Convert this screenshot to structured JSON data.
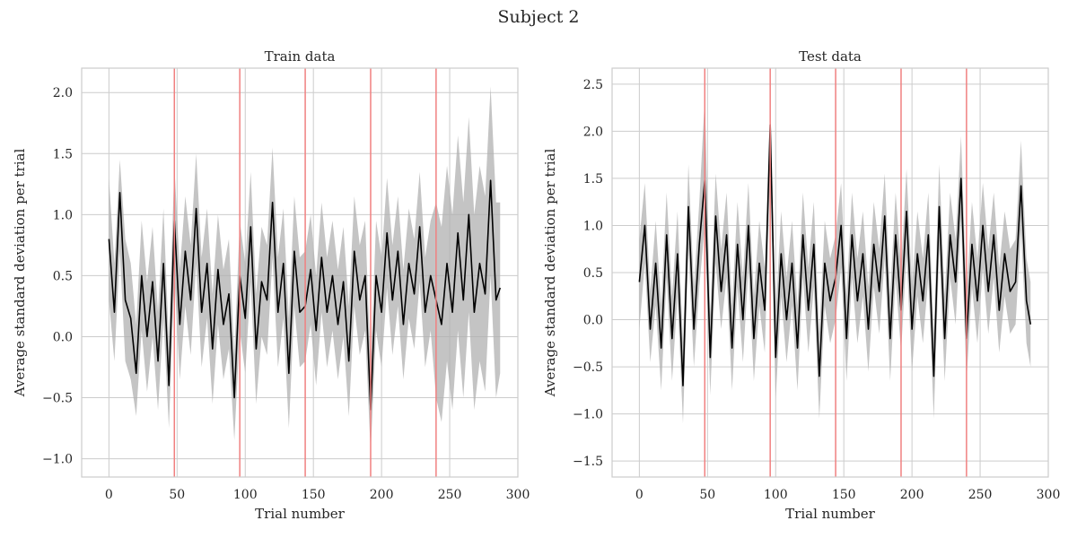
{
  "figure": {
    "suptitle": "Subject 2"
  },
  "chart_data": [
    {
      "type": "line",
      "title": "Train data",
      "xlabel": "Trial number",
      "ylabel": "Average standard deviation per trial",
      "xlim": [
        -20,
        300
      ],
      "ylim": [
        -1.15,
        2.2
      ],
      "xticks": [
        0,
        50,
        100,
        150,
        200,
        250,
        300
      ],
      "yticks": [
        -1.0,
        -0.5,
        0.0,
        0.5,
        1.0,
        1.5,
        2.0
      ],
      "ytick_labels": [
        "−1.0",
        "−0.5",
        "0.0",
        "0.5",
        "1.0",
        "1.5",
        "2.0"
      ],
      "grid": true,
      "vlines": [
        48,
        96,
        144,
        192,
        240
      ],
      "vline_color": "#f08080",
      "line_color": "#000000",
      "band_color": "#b0b0b0",
      "series": [
        {
          "x": [
            0,
            4,
            8,
            12,
            16,
            20,
            24,
            28,
            32,
            36,
            40,
            44,
            48,
            52,
            56,
            60,
            64,
            68,
            72,
            76,
            80,
            84,
            88,
            92,
            96,
            100,
            104,
            108,
            112,
            116,
            120,
            124,
            128,
            132,
            136,
            140,
            144,
            148,
            152,
            156,
            160,
            164,
            168,
            172,
            176,
            180,
            184,
            188,
            192,
            196,
            200,
            204,
            208,
            212,
            216,
            220,
            224,
            228,
            232,
            236,
            240,
            244,
            248,
            252,
            256,
            260,
            264,
            268,
            272,
            276,
            280,
            284,
            287
          ],
          "y": [
            0.8,
            0.2,
            1.18,
            0.3,
            0.15,
            -0.3,
            0.5,
            0.0,
            0.45,
            -0.2,
            0.6,
            -0.4,
            0.95,
            0.1,
            0.7,
            0.3,
            1.05,
            0.2,
            0.6,
            -0.1,
            0.55,
            0.1,
            0.35,
            -0.5,
            0.5,
            0.15,
            0.9,
            -0.1,
            0.45,
            0.3,
            1.1,
            0.2,
            0.6,
            -0.3,
            0.7,
            0.2,
            0.25,
            0.55,
            0.05,
            0.65,
            0.2,
            0.5,
            0.1,
            0.45,
            -0.2,
            0.7,
            0.3,
            0.5,
            -0.6,
            0.5,
            0.2,
            0.85,
            0.3,
            0.7,
            0.1,
            0.6,
            0.35,
            0.9,
            0.2,
            0.5,
            0.3,
            0.1,
            0.6,
            0.2,
            0.85,
            0.3,
            1.0,
            0.2,
            0.6,
            0.35,
            1.28,
            0.3,
            0.4
          ],
          "lower": [
            0.3,
            -0.2,
            0.7,
            -0.2,
            -0.35,
            -0.65,
            0.05,
            -0.45,
            0.0,
            -0.6,
            0.15,
            -0.75,
            0.5,
            -0.35,
            0.25,
            -0.15,
            0.6,
            -0.25,
            0.15,
            -0.55,
            0.1,
            -0.35,
            -0.1,
            -0.85,
            0.05,
            -0.3,
            0.45,
            -0.55,
            0.0,
            -0.15,
            0.65,
            -0.25,
            0.15,
            -0.75,
            0.25,
            -0.25,
            -0.2,
            0.1,
            -0.4,
            0.2,
            -0.25,
            0.05,
            -0.35,
            0.0,
            -0.65,
            0.25,
            -0.15,
            0.05,
            -0.95,
            0.05,
            -0.25,
            0.4,
            -0.15,
            0.25,
            -0.35,
            0.15,
            -0.1,
            0.45,
            -0.25,
            0.05,
            -0.5,
            -0.7,
            -0.2,
            -0.6,
            0.05,
            -0.5,
            0.2,
            -0.6,
            -0.2,
            -0.45,
            0.5,
            -0.5,
            -0.3
          ],
          "upper": [
            1.3,
            0.6,
            1.45,
            0.8,
            0.6,
            0.1,
            0.95,
            0.45,
            0.9,
            0.2,
            1.05,
            -0.05,
            1.4,
            0.55,
            1.15,
            0.75,
            1.5,
            0.65,
            1.05,
            0.35,
            1.0,
            0.55,
            0.8,
            -0.15,
            0.95,
            0.6,
            1.35,
            0.35,
            0.9,
            0.75,
            1.55,
            0.65,
            1.05,
            0.15,
            1.15,
            0.65,
            0.7,
            1.0,
            0.5,
            1.1,
            0.65,
            0.95,
            0.55,
            0.9,
            0.25,
            1.15,
            0.75,
            0.95,
            -0.25,
            0.95,
            0.65,
            1.3,
            0.75,
            1.15,
            0.55,
            1.05,
            0.8,
            1.35,
            0.65,
            0.95,
            1.1,
            0.9,
            1.4,
            1.0,
            1.65,
            1.1,
            1.8,
            1.0,
            1.4,
            1.15,
            2.05,
            1.1,
            1.1
          ]
        }
      ]
    },
    {
      "type": "line",
      "title": "Test data",
      "xlabel": "Trial number",
      "ylabel": "Average standard deviation per trial",
      "xlim": [
        -20,
        300
      ],
      "ylim": [
        -1.67,
        2.67
      ],
      "xticks": [
        0,
        50,
        100,
        150,
        200,
        250,
        300
      ],
      "yticks": [
        -1.5,
        -1.0,
        -0.5,
        0.0,
        0.5,
        1.0,
        1.5,
        2.0,
        2.5
      ],
      "ytick_labels": [
        "−1.5",
        "−1.0",
        "−0.5",
        "0.0",
        "0.5",
        "1.0",
        "1.5",
        "2.0",
        "2.5"
      ],
      "grid": true,
      "vlines": [
        48,
        96,
        144,
        192,
        240
      ],
      "vline_color": "#f08080",
      "line_color": "#000000",
      "band_color": "#b0b0b0",
      "series": [
        {
          "x": [
            0,
            4,
            8,
            12,
            16,
            20,
            24,
            28,
            32,
            36,
            40,
            44,
            48,
            52,
            56,
            60,
            64,
            68,
            72,
            76,
            80,
            84,
            88,
            92,
            96,
            100,
            104,
            108,
            112,
            116,
            120,
            124,
            128,
            132,
            136,
            140,
            144,
            148,
            152,
            156,
            160,
            164,
            168,
            172,
            176,
            180,
            184,
            188,
            192,
            196,
            200,
            204,
            208,
            212,
            216,
            220,
            224,
            228,
            232,
            236,
            240,
            244,
            248,
            252,
            256,
            260,
            264,
            268,
            272,
            276,
            280,
            284,
            287
          ],
          "y": [
            0.4,
            1.0,
            -0.1,
            0.6,
            -0.3,
            0.9,
            -0.2,
            0.7,
            -0.7,
            1.2,
            -0.1,
            0.8,
            1.48,
            -0.4,
            1.1,
            0.3,
            0.9,
            -0.3,
            0.8,
            0.0,
            1.0,
            -0.2,
            0.6,
            0.1,
            2.07,
            -0.4,
            0.7,
            0.0,
            0.6,
            -0.3,
            0.9,
            0.1,
            0.8,
            -0.6,
            0.6,
            0.2,
            0.45,
            1.0,
            -0.2,
            0.9,
            0.2,
            0.7,
            -0.1,
            0.8,
            0.3,
            1.1,
            -0.2,
            0.9,
            0.1,
            1.15,
            -0.1,
            0.7,
            0.2,
            0.9,
            -0.6,
            1.2,
            -0.2,
            0.9,
            0.4,
            1.5,
            -0.2,
            0.8,
            0.2,
            1.0,
            0.3,
            0.9,
            0.1,
            0.7,
            0.3,
            0.4,
            1.42,
            0.2,
            -0.05
          ],
          "lower": [
            -0.1,
            0.6,
            -0.45,
            0.15,
            -0.75,
            0.45,
            -0.65,
            0.25,
            -1.1,
            0.75,
            -0.5,
            0.35,
            1.0,
            -0.8,
            0.6,
            -0.1,
            0.45,
            -0.75,
            0.35,
            -0.45,
            0.55,
            -0.65,
            0.15,
            -0.35,
            1.6,
            -0.85,
            0.25,
            -0.45,
            0.15,
            -0.75,
            0.45,
            -0.35,
            0.35,
            -1.05,
            0.15,
            -0.25,
            0.0,
            0.55,
            -0.65,
            0.45,
            -0.25,
            0.25,
            -0.55,
            0.35,
            -0.15,
            0.65,
            -0.65,
            0.45,
            -0.35,
            0.7,
            -0.55,
            0.25,
            -0.25,
            0.45,
            -1.05,
            0.75,
            -0.65,
            0.45,
            -0.05,
            1.05,
            -0.65,
            0.35,
            -0.25,
            0.55,
            -0.15,
            0.45,
            -0.35,
            0.25,
            -0.15,
            -0.05,
            0.95,
            -0.25,
            -0.5
          ],
          "upper": [
            0.85,
            1.45,
            0.3,
            1.05,
            0.15,
            1.35,
            0.25,
            1.15,
            -0.25,
            1.65,
            0.35,
            1.25,
            2.35,
            0.05,
            1.55,
            0.75,
            1.35,
            0.15,
            1.25,
            0.45,
            1.45,
            0.25,
            1.05,
            0.55,
            2.1,
            0.05,
            1.15,
            0.45,
            1.05,
            0.15,
            1.35,
            0.55,
            1.25,
            -0.15,
            1.05,
            0.65,
            0.9,
            1.45,
            0.25,
            1.35,
            0.65,
            1.15,
            0.35,
            1.25,
            0.75,
            1.55,
            0.25,
            1.35,
            0.55,
            1.6,
            0.35,
            1.15,
            0.65,
            1.35,
            -0.15,
            1.65,
            0.25,
            1.35,
            0.85,
            1.95,
            0.25,
            1.25,
            0.65,
            1.45,
            0.75,
            1.35,
            0.55,
            1.15,
            0.75,
            0.85,
            1.9,
            0.65,
            0.4
          ]
        }
      ]
    }
  ]
}
